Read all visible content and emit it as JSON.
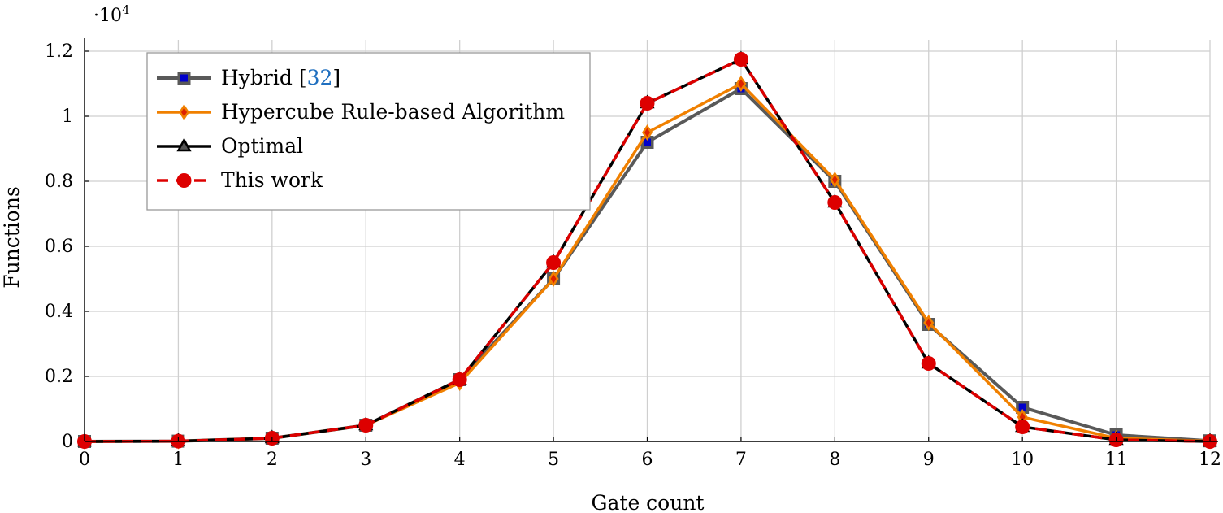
{
  "chart_data": {
    "type": "line",
    "xlabel": "Gate count",
    "ylabel": "Functions",
    "y_multiplier": "·10",
    "y_multiplier_exp": "4",
    "xlim": [
      0,
      12
    ],
    "ylim": [
      0,
      1.2
    ],
    "x_ticks": [
      "0",
      "1",
      "2",
      "3",
      "4",
      "5",
      "6",
      "7",
      "8",
      "9",
      "10",
      "11",
      "12"
    ],
    "y_ticks": [
      "0",
      "0.2",
      "0.4",
      "0.6",
      "0.8",
      "1",
      "1.2"
    ],
    "grid": true,
    "legend_position": "top-left",
    "x": [
      0,
      1,
      2,
      3,
      4,
      5,
      6,
      7,
      8,
      9,
      10,
      11,
      12
    ],
    "series": [
      {
        "name": "Hybrid [",
        "name_ref": "32",
        "name_suffix": "]",
        "color": "#595959",
        "marker": "square",
        "marker_fill": "#0000cc",
        "values": [
          0,
          0.001,
          0.01,
          0.05,
          0.19,
          0.5,
          0.92,
          1.085,
          0.8,
          0.36,
          0.105,
          0.02,
          0.002
        ]
      },
      {
        "name": "Hypercube Rule-based Algorithm",
        "color": "#f08000",
        "marker": "diamond",
        "marker_fill": "#dd2200",
        "values": [
          0,
          0.001,
          0.01,
          0.05,
          0.18,
          0.5,
          0.95,
          1.1,
          0.805,
          0.365,
          0.075,
          0.01,
          0.001
        ]
      },
      {
        "name": "Optimal",
        "color": "#000000",
        "marker": "triangle",
        "marker_fill": "#555555",
        "values": [
          0,
          0.001,
          0.01,
          0.05,
          0.19,
          0.55,
          1.04,
          1.175,
          0.735,
          0.24,
          0.045,
          0.005,
          0
        ]
      },
      {
        "name": "This work",
        "color": "#dd0000",
        "marker": "circle",
        "marker_fill": "#dd0000",
        "dashed": true,
        "values": [
          0,
          0.001,
          0.01,
          0.05,
          0.19,
          0.55,
          1.04,
          1.175,
          0.735,
          0.24,
          0.045,
          0.005,
          0
        ]
      }
    ],
    "colors": {
      "grid": "#cfcfcf",
      "axis": "#000000",
      "ref_link": "#1f6fbf"
    }
  }
}
